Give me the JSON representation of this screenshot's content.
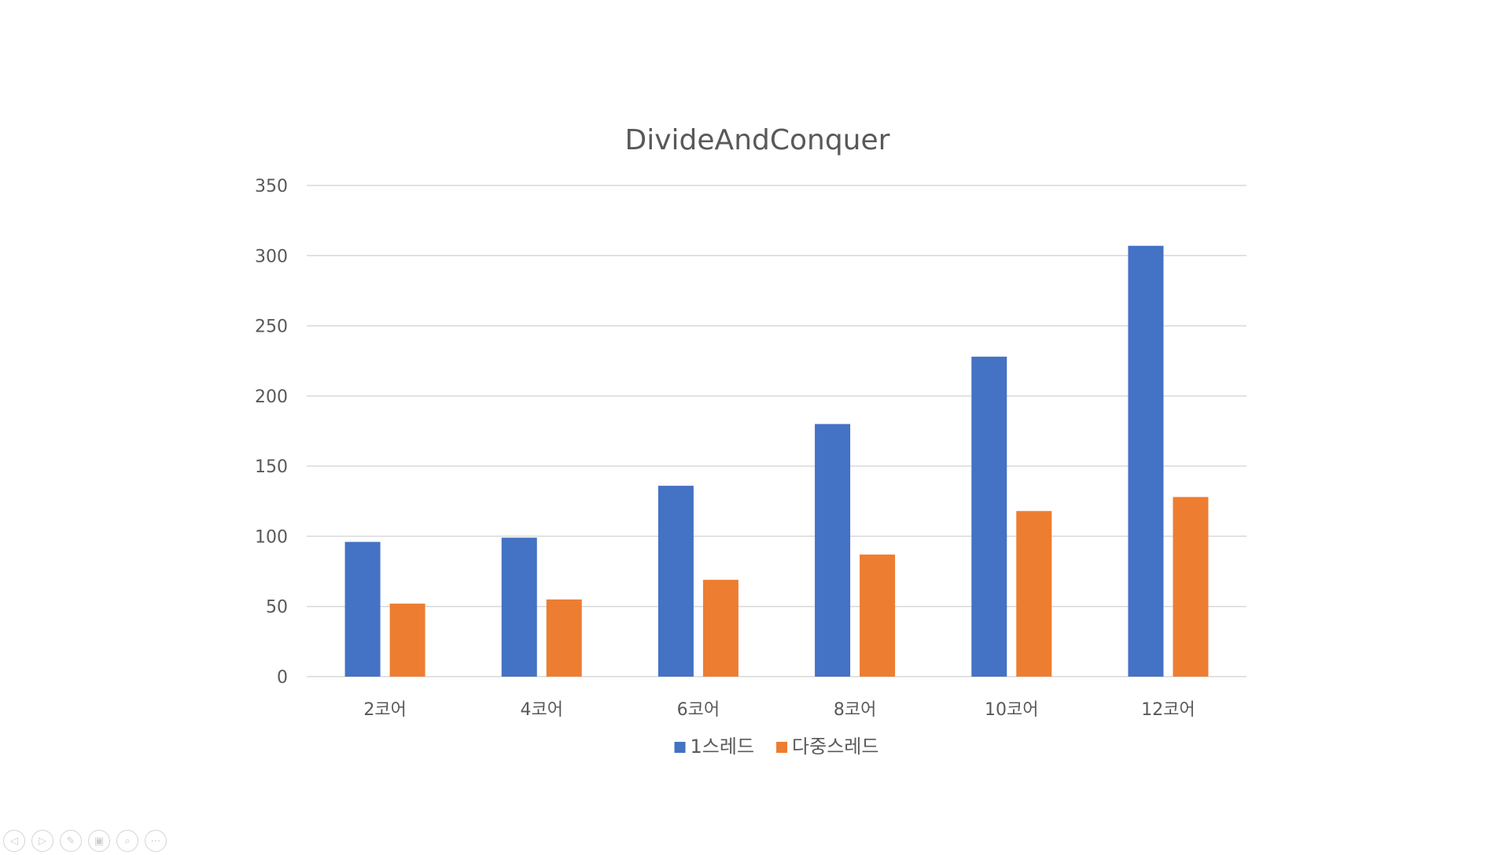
{
  "chart_data": {
    "type": "bar",
    "title": "DivideAndConquer",
    "xlabel": "",
    "ylabel": "",
    "categories": [
      "2코어",
      "4코어",
      "6코어",
      "8코어",
      "10코어",
      "12코어"
    ],
    "series": [
      {
        "name": "1스레드",
        "color": "#4472C4",
        "values": [
          96,
          99,
          136,
          180,
          228,
          307
        ]
      },
      {
        "name": "다중스레드",
        "color": "#ED7D31",
        "values": [
          52,
          55,
          69,
          87,
          118,
          128
        ]
      }
    ],
    "ylim": [
      0,
      350
    ],
    "yticks": [
      0,
      50,
      100,
      150,
      200,
      250,
      300,
      350
    ],
    "grid": true,
    "legend_position": "bottom"
  },
  "toolbar": {
    "buttons": [
      {
        "name": "previous-slide-button",
        "icon": "chevron-left-icon",
        "glyph": "◁"
      },
      {
        "name": "next-slide-button",
        "icon": "chevron-right-icon",
        "glyph": "▷"
      },
      {
        "name": "pen-button",
        "icon": "pen-icon",
        "glyph": "✎"
      },
      {
        "name": "slides-overview-button",
        "icon": "grid-icon",
        "glyph": "▣"
      },
      {
        "name": "zoom-button",
        "icon": "magnifier-icon",
        "glyph": "⌕"
      },
      {
        "name": "more-options-button",
        "icon": "ellipsis-icon",
        "glyph": "⋯"
      }
    ]
  }
}
